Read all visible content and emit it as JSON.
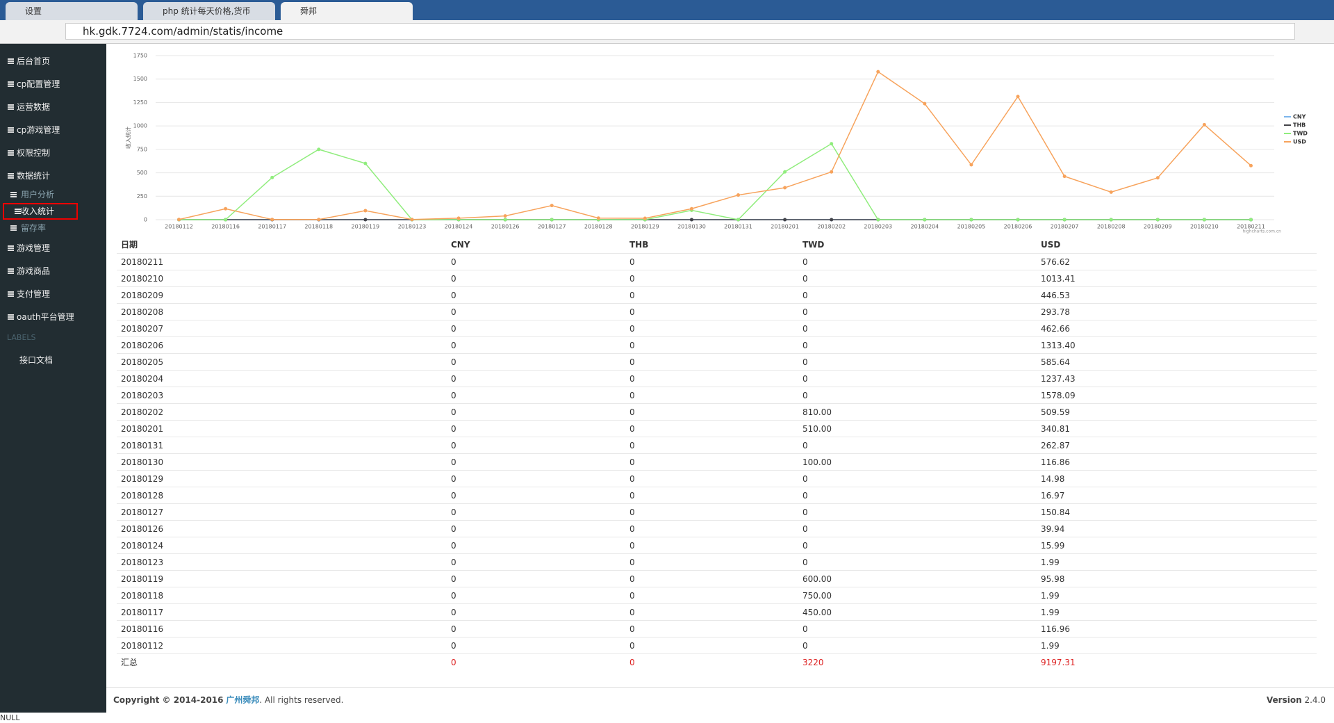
{
  "browser": {
    "tabs": [
      "设置",
      "php 统计每天价格,货币",
      "舜邦"
    ],
    "url": "hk.gdk.7724.com/admin/statis/income"
  },
  "sidebar": {
    "items": [
      "后台首页",
      "cp配置管理",
      "运营数据",
      "cp游戏管理",
      "权限控制",
      "数据统计"
    ],
    "submenu": [
      "用户分析",
      "收入统计",
      "留存率"
    ],
    "items_after": [
      "游戏管理",
      "游戏商品",
      "支付管理",
      "oauth平台管理"
    ],
    "section": "LABELS",
    "link": "接口文档"
  },
  "chart_data": {
    "type": "line",
    "y_label": "收入统计",
    "credit": "highcharts.com.cn",
    "categories": [
      "20180112",
      "20180116",
      "20180117",
      "20180118",
      "20180119",
      "20180123",
      "20180124",
      "20180126",
      "20180127",
      "20180128",
      "20180129",
      "20180130",
      "20180131",
      "20180201",
      "20180202",
      "20180203",
      "20180204",
      "20180205",
      "20180206",
      "20180207",
      "20180208",
      "20180209",
      "20180210",
      "20180211"
    ],
    "series": [
      {
        "name": "CNY",
        "color": "#7cb5ec",
        "values": [
          0,
          0,
          0,
          0,
          0,
          0,
          0,
          0,
          0,
          0,
          0,
          0,
          0,
          0,
          0,
          0,
          0,
          0,
          0,
          0,
          0,
          0,
          0,
          0
        ]
      },
      {
        "name": "THB",
        "color": "#434348",
        "values": [
          0,
          0,
          0,
          0,
          0,
          0,
          0,
          0,
          0,
          0,
          0,
          0,
          0,
          0,
          0,
          0,
          0,
          0,
          0,
          0,
          0,
          0,
          0,
          0
        ]
      },
      {
        "name": "TWD",
        "color": "#90ed7d",
        "values": [
          0,
          0,
          450,
          750,
          600,
          0,
          0,
          0,
          0,
          0,
          0,
          100,
          0,
          510,
          810,
          0,
          0,
          0,
          0,
          0,
          0,
          0,
          0,
          0
        ]
      },
      {
        "name": "USD",
        "color": "#f7a35c",
        "values": [
          1.99,
          116.96,
          1.99,
          1.99,
          95.98,
          1.99,
          15.99,
          39.94,
          150.84,
          16.97,
          14.98,
          116.86,
          262.87,
          340.81,
          509.59,
          1578.09,
          1237.43,
          585.64,
          1313.4,
          462.66,
          293.78,
          446.53,
          1013.41,
          576.62
        ]
      }
    ],
    "ylim": [
      0,
      1750
    ],
    "yticks": [
      0,
      250,
      500,
      750,
      1000,
      1250,
      1500,
      1750
    ],
    "grid": true,
    "legend": "right"
  },
  "table": {
    "header": [
      "日期",
      "CNY",
      "THB",
      "TWD",
      "USD"
    ],
    "rows": [
      [
        "20180211",
        "0",
        "0",
        "0",
        "576.62"
      ],
      [
        "20180210",
        "0",
        "0",
        "0",
        "1013.41"
      ],
      [
        "20180209",
        "0",
        "0",
        "0",
        "446.53"
      ],
      [
        "20180208",
        "0",
        "0",
        "0",
        "293.78"
      ],
      [
        "20180207",
        "0",
        "0",
        "0",
        "462.66"
      ],
      [
        "20180206",
        "0",
        "0",
        "0",
        "1313.40"
      ],
      [
        "20180205",
        "0",
        "0",
        "0",
        "585.64"
      ],
      [
        "20180204",
        "0",
        "0",
        "0",
        "1237.43"
      ],
      [
        "20180203",
        "0",
        "0",
        "0",
        "1578.09"
      ],
      [
        "20180202",
        "0",
        "0",
        "810.00",
        "509.59"
      ],
      [
        "20180201",
        "0",
        "0",
        "510.00",
        "340.81"
      ],
      [
        "20180131",
        "0",
        "0",
        "0",
        "262.87"
      ],
      [
        "20180130",
        "0",
        "0",
        "100.00",
        "116.86"
      ],
      [
        "20180129",
        "0",
        "0",
        "0",
        "14.98"
      ],
      [
        "20180128",
        "0",
        "0",
        "0",
        "16.97"
      ],
      [
        "20180127",
        "0",
        "0",
        "0",
        "150.84"
      ],
      [
        "20180126",
        "0",
        "0",
        "0",
        "39.94"
      ],
      [
        "20180124",
        "0",
        "0",
        "0",
        "15.99"
      ],
      [
        "20180123",
        "0",
        "0",
        "0",
        "1.99"
      ],
      [
        "20180119",
        "0",
        "0",
        "600.00",
        "95.98"
      ],
      [
        "20180118",
        "0",
        "0",
        "750.00",
        "1.99"
      ],
      [
        "20180117",
        "0",
        "0",
        "450.00",
        "1.99"
      ],
      [
        "20180116",
        "0",
        "0",
        "0",
        "116.96"
      ],
      [
        "20180112",
        "0",
        "0",
        "0",
        "1.99"
      ]
    ],
    "total": [
      "汇总",
      "0",
      "0",
      "3220",
      "9197.31"
    ]
  },
  "footer": {
    "copyright": "Copyright © 2014-2016",
    "company": "广州舜邦",
    "rights": ". All rights reserved.",
    "version_label": "Version",
    "version": "2.4.0"
  },
  "status": "NULL"
}
